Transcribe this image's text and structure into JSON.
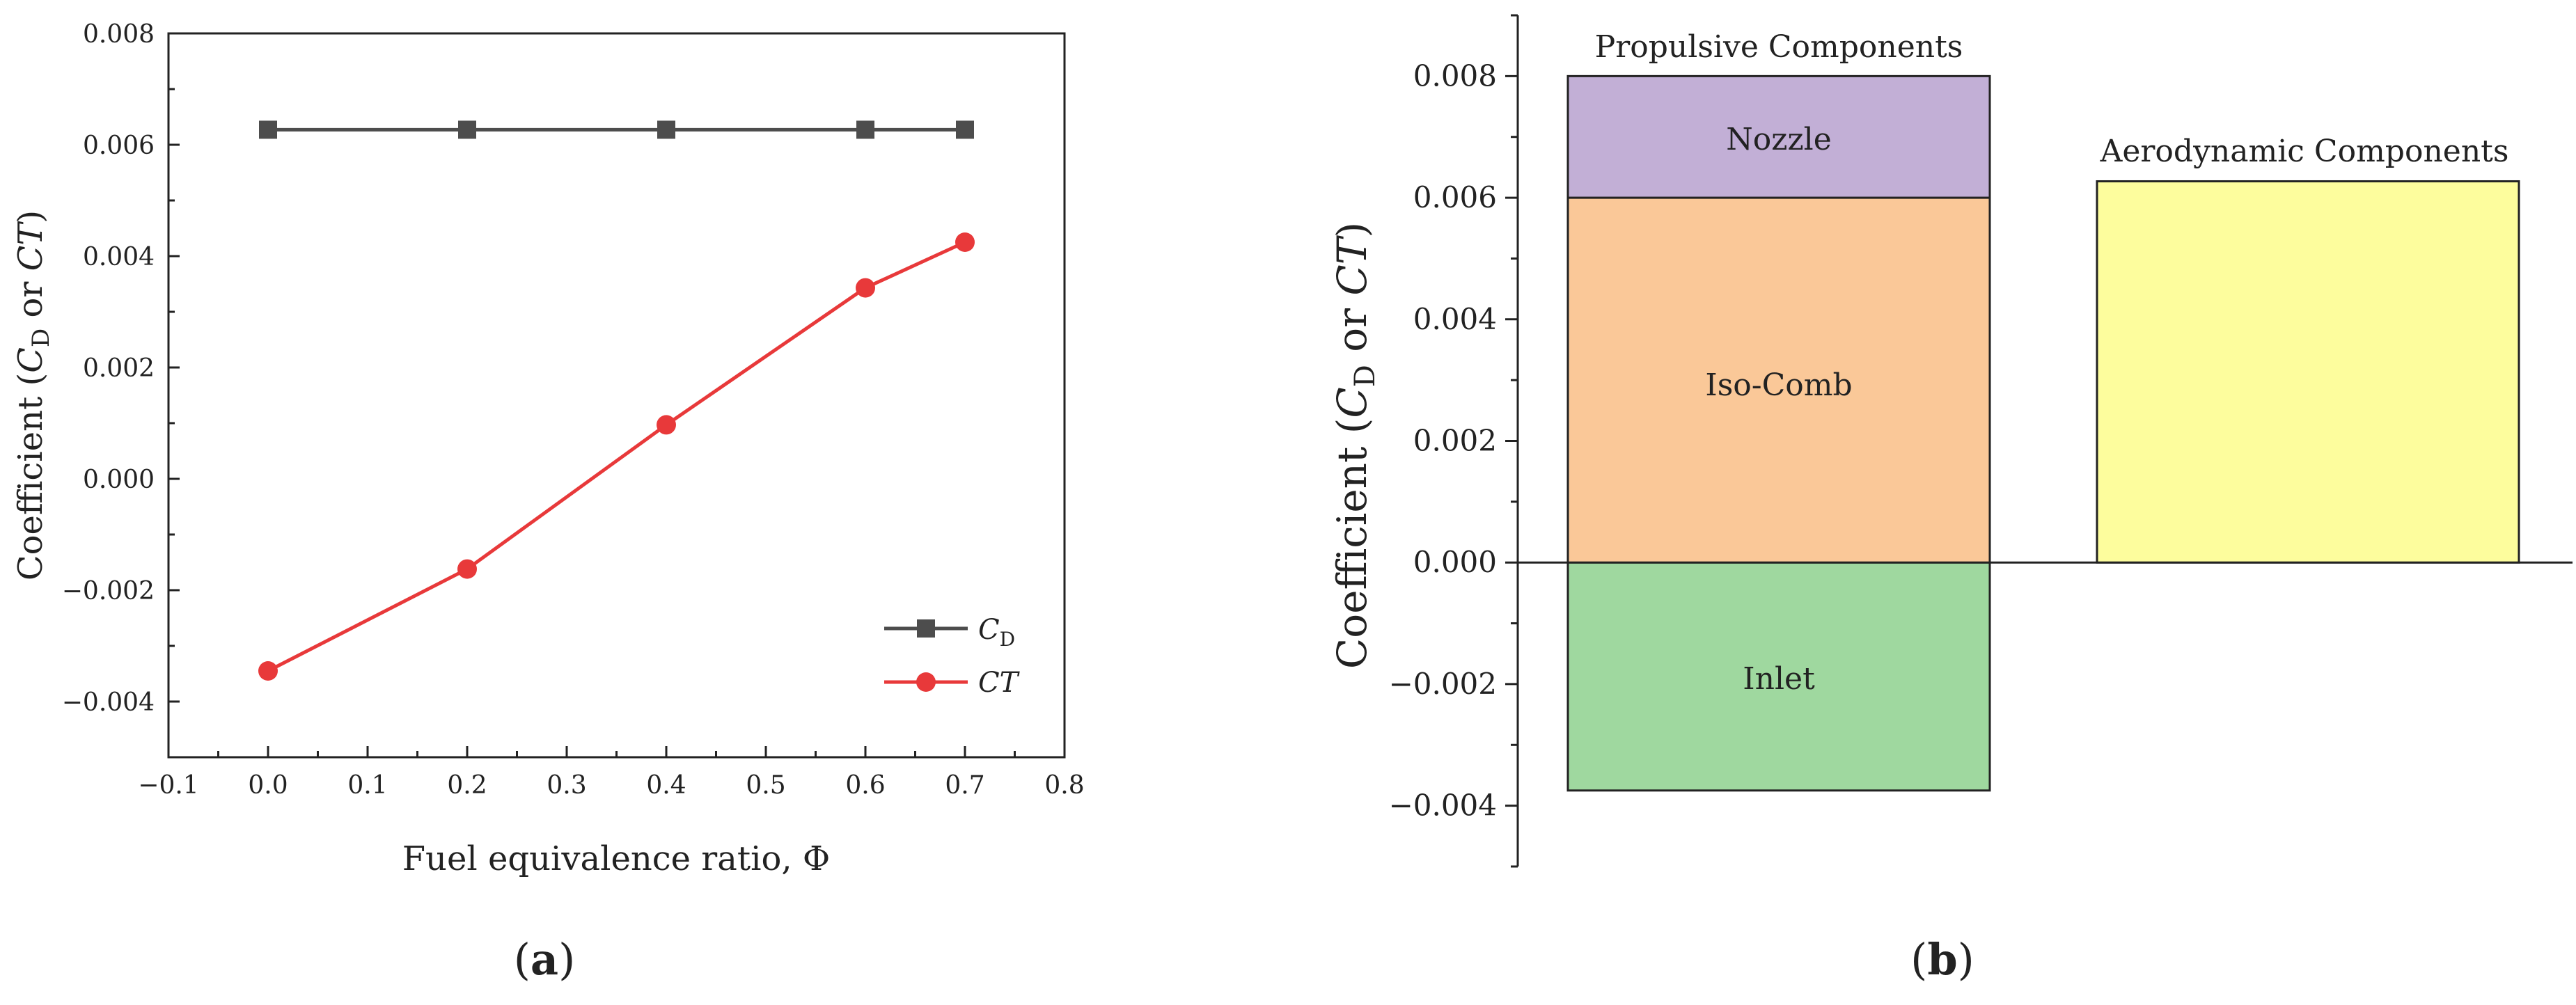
{
  "panel_labels": {
    "a": "a",
    "b": "b"
  },
  "colors": {
    "axis": "#222222",
    "cd_series": "#4d4d4d",
    "ct_series": "#e8393a",
    "nozzle": "#c2afd6",
    "isocomb": "#fac898",
    "inlet": "#9fd89f",
    "aero": "#fdfd9d"
  },
  "chart_data": [
    {
      "type": "line",
      "panel": "a",
      "xlabel": "Fuel equivalence ratio, Φ",
      "ylabel": {
        "prefix": "Coefficient (",
        "c": "C",
        "sub": "D",
        "mid": " or ",
        "ct": "CT",
        "suffix": ")"
      },
      "xlim": [
        -0.1,
        0.8
      ],
      "ylim": [
        -0.005,
        0.008
      ],
      "xticks": [
        -0.1,
        0.0,
        0.1,
        0.2,
        0.3,
        0.4,
        0.5,
        0.6,
        0.7,
        0.8
      ],
      "xtick_labels": [
        "−0.1",
        "0.0",
        "0.1",
        "0.2",
        "0.3",
        "0.4",
        "0.5",
        "0.6",
        "0.7",
        "0.8"
      ],
      "yticks": [
        -0.004,
        -0.002,
        0.0,
        0.002,
        0.004,
        0.006,
        0.008
      ],
      "ytick_labels": [
        "−0.004",
        "−0.002",
        "0.000",
        "0.002",
        "0.004",
        "0.006",
        "0.008"
      ],
      "x": [
        0.0,
        0.2,
        0.4,
        0.6,
        0.7
      ],
      "series": [
        {
          "name": "CD",
          "legend_main": "C",
          "legend_sub": "D",
          "marker": "square",
          "values": [
            0.00627,
            0.00627,
            0.00627,
            0.00627,
            0.00627
          ]
        },
        {
          "name": "CT",
          "legend_main": "CT",
          "legend_sub": "",
          "marker": "circle",
          "values": [
            -0.00345,
            -0.00162,
            0.00097,
            0.00343,
            0.00425
          ]
        }
      ],
      "legend_position": "bottom-right"
    },
    {
      "type": "bar",
      "panel": "b",
      "ylabel": {
        "prefix": "Coefficient (",
        "c": "C",
        "sub": "D",
        "mid": " or ",
        "ct": "CT",
        "suffix": ")"
      },
      "ylim": [
        -0.005,
        0.009
      ],
      "yticks": [
        -0.004,
        -0.002,
        0.0,
        0.002,
        0.004,
        0.006,
        0.008
      ],
      "ytick_labels": [
        "−0.004",
        "−0.002",
        "0.000",
        "0.002",
        "0.004",
        "0.006",
        "0.008"
      ],
      "categories": [
        "Propulsive Components",
        "Aerodynamic Components"
      ],
      "stacks": [
        {
          "category": "Propulsive Components",
          "segments": [
            {
              "name": "Inlet",
              "start": -0.00375,
              "end": 0.0,
              "color_key": "inlet"
            },
            {
              "name": "Iso-Comb",
              "start": 0.0,
              "end": 0.006,
              "color_key": "isocomb"
            },
            {
              "name": "Nozzle",
              "start": 0.006,
              "end": 0.008,
              "color_key": "nozzle"
            }
          ]
        },
        {
          "category": "Aerodynamic Components",
          "segments": [
            {
              "name": "",
              "start": 0.0,
              "end": 0.00627,
              "color_key": "aero"
            }
          ]
        }
      ]
    }
  ]
}
